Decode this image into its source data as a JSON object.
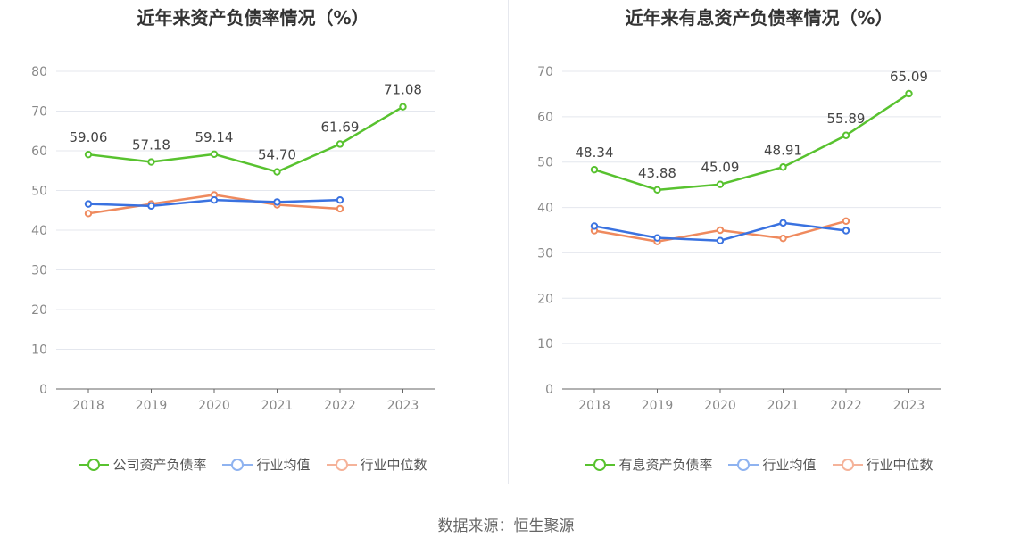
{
  "colors": {
    "green": "#58c22f",
    "blue": "#3a72e0",
    "orange": "#ef8a5e",
    "legend_blue": "#8fb3f0",
    "legend_orange": "#f5b39a"
  },
  "source": "数据来源：恒生聚源",
  "chart_data": [
    {
      "type": "line",
      "title": "近年来资产负债率情况（%）",
      "x": [
        "2018",
        "2019",
        "2020",
        "2021",
        "2022",
        "2023"
      ],
      "ylim": [
        0,
        80
      ],
      "yticks": [
        "0",
        "10",
        "20",
        "30",
        "40",
        "50",
        "60",
        "70",
        "80"
      ],
      "series": [
        {
          "name": "公司资产负债率",
          "values": [
            59.06,
            57.18,
            59.14,
            54.7,
            61.69,
            71.08
          ],
          "labels": [
            "59.06",
            "57.18",
            "59.14",
            "54.70",
            "61.69",
            "71.08"
          ],
          "color": "green",
          "legend_color": "green"
        },
        {
          "name": "行业均值",
          "values": [
            46.6,
            46.1,
            47.6,
            47.1,
            47.6,
            null
          ],
          "labels": [],
          "color": "blue",
          "legend_color": "legend_blue"
        },
        {
          "name": "行业中位数",
          "values": [
            44.2,
            46.6,
            48.9,
            46.4,
            45.4,
            null
          ],
          "labels": [],
          "color": "orange",
          "legend_color": "legend_orange"
        }
      ]
    },
    {
      "type": "line",
      "title": "近年来有息资产负债率情况（%）",
      "x": [
        "2018",
        "2019",
        "2020",
        "2021",
        "2022",
        "2023"
      ],
      "ylim": [
        0,
        70
      ],
      "yticks": [
        "0",
        "10",
        "20",
        "30",
        "40",
        "50",
        "60",
        "70"
      ],
      "series": [
        {
          "name": "有息资产负债率",
          "values": [
            48.34,
            43.88,
            45.09,
            48.91,
            55.89,
            65.09
          ],
          "labels": [
            "48.34",
            "43.88",
            "45.09",
            "48.91",
            "55.89",
            "65.09"
          ],
          "color": "green",
          "legend_color": "green"
        },
        {
          "name": "行业均值",
          "values": [
            35.9,
            33.3,
            32.7,
            36.6,
            34.9,
            null
          ],
          "labels": [],
          "color": "blue",
          "legend_color": "legend_blue"
        },
        {
          "name": "行业中位数",
          "values": [
            34.9,
            32.5,
            35.0,
            33.2,
            37.0,
            null
          ],
          "labels": [],
          "color": "orange",
          "legend_color": "legend_orange"
        }
      ]
    }
  ]
}
